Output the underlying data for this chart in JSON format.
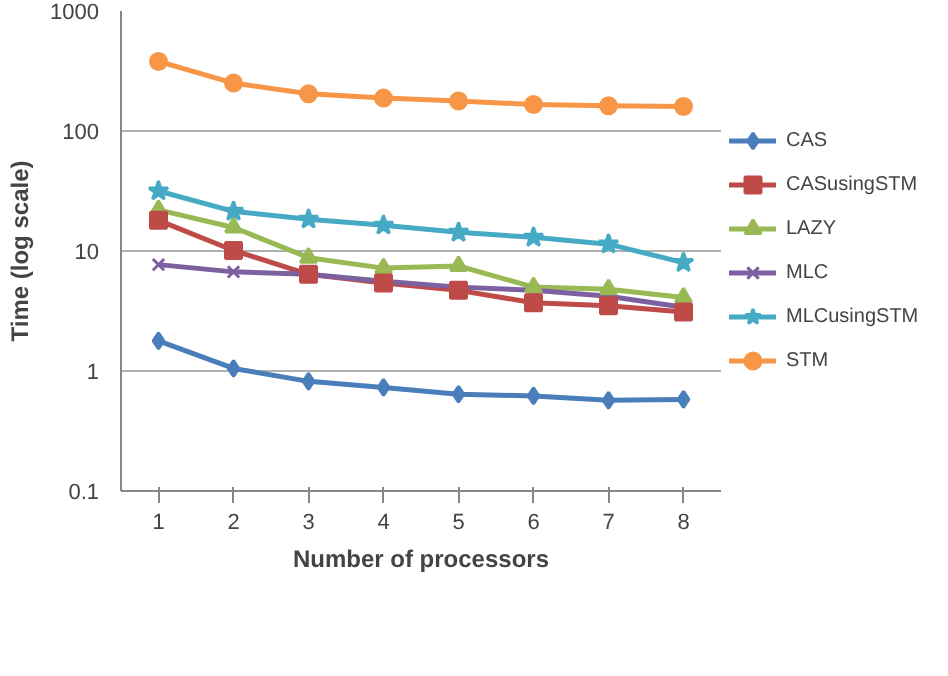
{
  "chart_data": {
    "type": "line",
    "xlabel": "Number of processors",
    "ylabel": "Time (log scale)",
    "x": [
      1,
      2,
      3,
      4,
      5,
      6,
      7,
      8
    ],
    "log": true,
    "ylim": [
      0.1,
      1000
    ],
    "yticks": [
      0.1,
      1,
      10,
      100,
      1000
    ],
    "xlim": [
      0.5,
      8.5
    ],
    "xticks": [
      1,
      2,
      3,
      4,
      5,
      6,
      7,
      8
    ],
    "grid": "y",
    "legend": "right",
    "line_style": "solid",
    "series": [
      {
        "name": "CAS",
        "color": "#4a7ebb",
        "marker": "diamond",
        "values": [
          1.78,
          1.05,
          0.82,
          0.73,
          0.64,
          0.62,
          0.57,
          0.58
        ]
      },
      {
        "name": "CASusingSTM",
        "color": "#be4b48",
        "marker": "square",
        "values": [
          18,
          10.1,
          6.4,
          5.4,
          4.7,
          3.7,
          3.5,
          3.1
        ]
      },
      {
        "name": "LAZY",
        "color": "#98b954",
        "marker": "triangle",
        "values": [
          22,
          15.7,
          8.8,
          7.2,
          7.5,
          5.0,
          4.8,
          4.1
        ]
      },
      {
        "name": "MLC",
        "color": "#7d60a0",
        "marker": "cross",
        "values": [
          7.7,
          6.7,
          6.4,
          5.6,
          5.0,
          4.7,
          4.2,
          3.4
        ]
      },
      {
        "name": "MLCusingSTM",
        "color": "#46aac5",
        "marker": "star",
        "values": [
          31.6,
          21.4,
          18.4,
          16.4,
          14.3,
          13.0,
          11.4,
          8.0
        ]
      },
      {
        "name": "STM",
        "color": "#f79646",
        "marker": "circle",
        "values": [
          380,
          251,
          204,
          188,
          178,
          166,
          162,
          160
        ]
      }
    ]
  }
}
